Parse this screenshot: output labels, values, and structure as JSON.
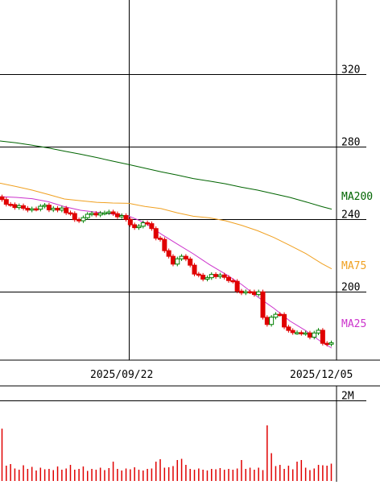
{
  "chart_data": {
    "type": "candlestick",
    "title": "",
    "price_axis": {
      "ylim": [
        190,
        360
      ],
      "ticks": [
        320,
        280,
        240,
        200
      ],
      "tick_labels": [
        "320",
        "280",
        "240",
        "200"
      ],
      "grid": true,
      "side": "right"
    },
    "x_axis": {
      "tick_labels": [
        "2025/09/22",
        "2025/12/05"
      ],
      "vertical_gridline_at": "2025/09/22"
    },
    "moving_averages": [
      {
        "name": "MA200",
        "label": "MA200",
        "color": "#006400",
        "points": [
          [
            0,
            283.1
          ],
          [
            20,
            282.1
          ],
          [
            40,
            280.8
          ],
          [
            60,
            279.3
          ],
          [
            80,
            277.5
          ],
          [
            100,
            275.8
          ],
          [
            120,
            274.0
          ],
          [
            140,
            272.0
          ],
          [
            160,
            270.1
          ],
          [
            180,
            268.1
          ],
          [
            200,
            266.1
          ],
          [
            220,
            264.3
          ],
          [
            240,
            262.4
          ],
          [
            260,
            261.0
          ],
          [
            280,
            259.5
          ],
          [
            300,
            257.6
          ],
          [
            320,
            256.0
          ],
          [
            340,
            254.0
          ],
          [
            360,
            252.0
          ],
          [
            380,
            249.5
          ],
          [
            400,
            246.9
          ],
          [
            412,
            245.5
          ]
        ]
      },
      {
        "name": "MA75",
        "label": "MA75",
        "color": "#f0a020",
        "points": [
          [
            0,
            259.8
          ],
          [
            20,
            258.0
          ],
          [
            40,
            256.0
          ],
          [
            60,
            253.6
          ],
          [
            80,
            251.1
          ],
          [
            100,
            250.2
          ],
          [
            120,
            249.3
          ],
          [
            140,
            248.9
          ],
          [
            160,
            248.7
          ],
          [
            180,
            247.0
          ],
          [
            200,
            245.8
          ],
          [
            220,
            243.5
          ],
          [
            240,
            241.6
          ],
          [
            260,
            240.7
          ],
          [
            280,
            239.1
          ],
          [
            300,
            236.6
          ],
          [
            320,
            233.6
          ],
          [
            340,
            229.9
          ],
          [
            360,
            225.5
          ],
          [
            380,
            221.0
          ],
          [
            400,
            215.4
          ],
          [
            412,
            212.6
          ]
        ]
      },
      {
        "name": "MA25",
        "label": "MA25",
        "color": "#cc33cc",
        "points": [
          [
            0,
            252.4
          ],
          [
            20,
            252.0
          ],
          [
            40,
            251.3
          ],
          [
            60,
            249.6
          ],
          [
            80,
            246.9
          ],
          [
            100,
            244.9
          ],
          [
            120,
            243.8
          ],
          [
            140,
            242.8
          ],
          [
            160,
            241.7
          ],
          [
            180,
            238.0
          ],
          [
            200,
            231.8
          ],
          [
            220,
            226.3
          ],
          [
            240,
            220.9
          ],
          [
            260,
            215.0
          ],
          [
            280,
            209.7
          ],
          [
            300,
            204.0
          ],
          [
            320,
            197.1
          ],
          [
            340,
            190.9
          ],
          [
            360,
            183.8
          ],
          [
            380,
            178.4
          ],
          [
            400,
            172.0
          ],
          [
            412,
            168.9
          ]
        ]
      }
    ],
    "candles_close": [
      250.8,
      248.2,
      248.0,
      246.4,
      247.4,
      246.0,
      245.0,
      245.7,
      245.5,
      247.1,
      247.7,
      245.1,
      246.0,
      245.0,
      246.1,
      243.5,
      243.1,
      239.7,
      239.1,
      240.8,
      242.7,
      243.2,
      242.3,
      243.3,
      243.5,
      244.0,
      243.0,
      241.3,
      242.0,
      239.9,
      236.9,
      235.3,
      236.1,
      238.0,
      237.5,
      234.8,
      229.5,
      228.8,
      222.6,
      219.5,
      215.2,
      218.1,
      219.5,
      218.0,
      214.6,
      209.7,
      209.1,
      206.9,
      207.7,
      209.5,
      208.3,
      209.2,
      207.9,
      206.1,
      205.7,
      200.3,
      199.3,
      200.0,
      199.9,
      198.4,
      199.9,
      185.8,
      181.9,
      185.9,
      187.5,
      187.4,
      180.5,
      178.6,
      177.4,
      177.4,
      176.9,
      177.2,
      174.9,
      177.2,
      178.7,
      171.5,
      171.0,
      171.8
    ],
    "volume": {
      "tick_labels": [
        "2M"
      ],
      "max": 2000000,
      "values": [
        1300000,
        380000,
        420000,
        310000,
        280000,
        390000,
        300000,
        350000,
        260000,
        330000,
        290000,
        300000,
        270000,
        360000,
        280000,
        310000,
        400000,
        280000,
        300000,
        360000,
        250000,
        300000,
        280000,
        330000,
        270000,
        320000,
        480000,
        300000,
        260000,
        310000,
        290000,
        340000,
        280000,
        260000,
        300000,
        310000,
        480000,
        540000,
        330000,
        340000,
        370000,
        520000,
        550000,
        400000,
        300000,
        280000,
        310000,
        280000,
        260000,
        300000,
        290000,
        320000,
        280000,
        300000,
        280000,
        310000,
        520000,
        300000,
        330000,
        280000,
        330000,
        270000,
        1380000,
        690000,
        370000,
        400000,
        300000,
        380000,
        290000,
        480000,
        520000,
        330000,
        270000,
        310000,
        400000,
        390000,
        380000,
        430000
      ]
    }
  }
}
